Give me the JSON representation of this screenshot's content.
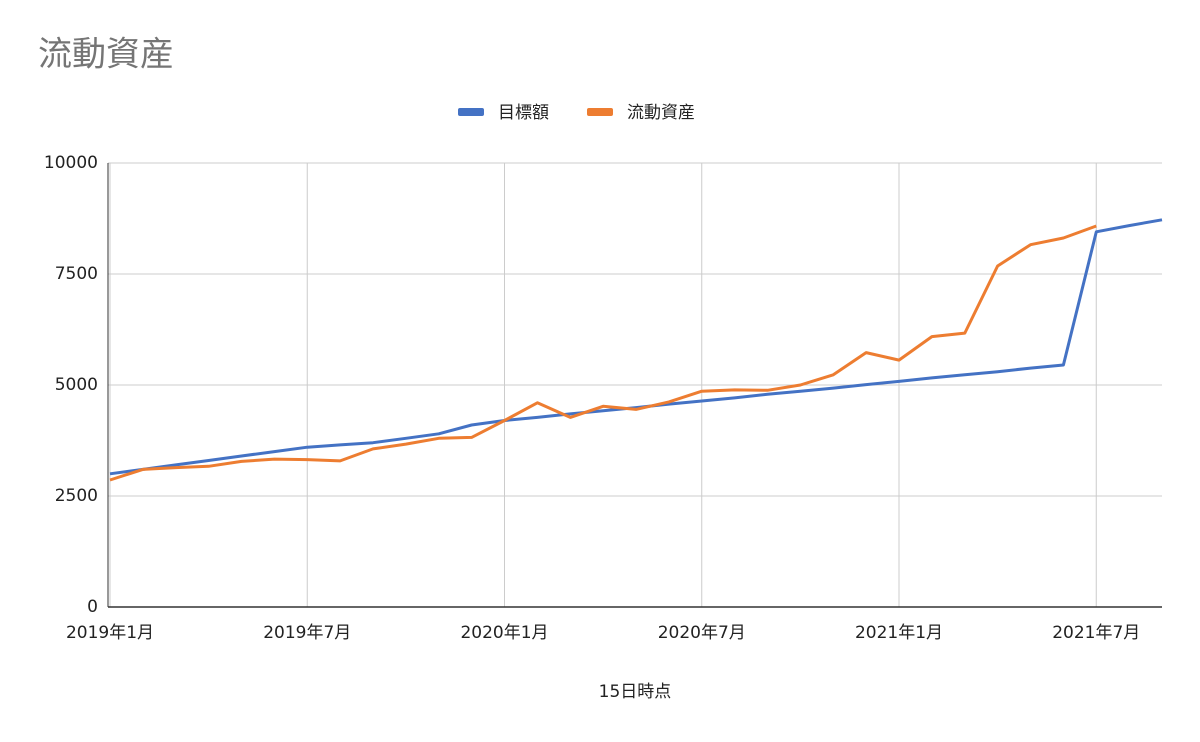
{
  "chart_data": {
    "type": "line",
    "title": "流動資産",
    "x_label": "15日時点",
    "x": [
      "2019-01",
      "2019-02",
      "2019-03",
      "2019-04",
      "2019-05",
      "2019-06",
      "2019-07",
      "2019-08",
      "2019-09",
      "2019-10",
      "2019-11",
      "2019-12",
      "2020-01",
      "2020-02",
      "2020-03",
      "2020-04",
      "2020-05",
      "2020-06",
      "2020-07",
      "2020-08",
      "2020-09",
      "2020-10",
      "2020-11",
      "2020-12",
      "2021-01",
      "2021-02",
      "2021-03",
      "2021-04",
      "2021-05",
      "2021-06",
      "2021-07",
      "2021-08",
      "2021-09"
    ],
    "series": [
      {
        "name": "目標額",
        "color": "#4472c4",
        "values": [
          3000,
          3100,
          3200,
          3300,
          3400,
          3500,
          3600,
          3650,
          3700,
          3800,
          3900,
          4100,
          4200,
          4270,
          4350,
          4420,
          4490,
          4570,
          4640,
          4710,
          4790,
          4860,
          4930,
          5010,
          5080,
          5160,
          5230,
          5300,
          5380,
          5450,
          8450,
          8590,
          8720
        ]
      },
      {
        "name": "流動資産",
        "color": "#ed7d31",
        "values": [
          2860,
          3100,
          3140,
          3170,
          3280,
          3330,
          3320,
          3290,
          3560,
          3670,
          3800,
          3820,
          4200,
          4600,
          4270,
          4520,
          4450,
          4620,
          4860,
          4890,
          4880,
          5000,
          5230,
          5730,
          5560,
          6090,
          6170,
          7680,
          8160,
          8310,
          8580,
          null,
          null
        ]
      }
    ],
    "xticks": [
      {
        "value": "2019-01",
        "label": "2019年1月"
      },
      {
        "value": "2019-07",
        "label": "2019年7月"
      },
      {
        "value": "2020-01",
        "label": "2020年1月"
      },
      {
        "value": "2020-07",
        "label": "2020年7月"
      },
      {
        "value": "2021-01",
        "label": "2021年1月"
      },
      {
        "value": "2021-07",
        "label": "2021年7月"
      }
    ],
    "ylim": [
      0,
      10000
    ],
    "yticks": [
      0,
      2500,
      5000,
      7500,
      10000
    ],
    "grid": true,
    "legend": "top"
  }
}
